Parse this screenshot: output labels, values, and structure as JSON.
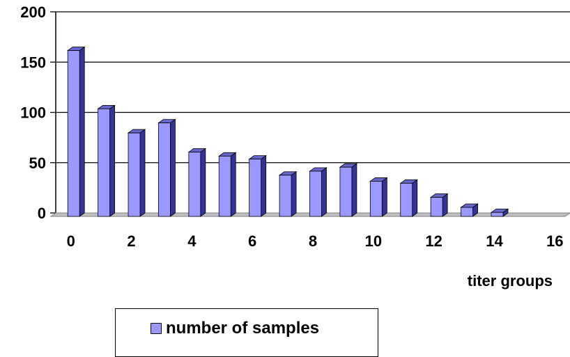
{
  "chart_data": {
    "type": "bar",
    "x": [
      0,
      1,
      2,
      3,
      4,
      5,
      6,
      7,
      8,
      9,
      10,
      11,
      12,
      13,
      14
    ],
    "series": [
      {
        "name": "number of samples",
        "values": [
          165,
          107,
          83,
          93,
          64,
          60,
          57,
          41,
          45,
          49,
          35,
          33,
          19,
          9,
          4
        ]
      }
    ],
    "xlabel": "titer groups",
    "ylabel": "",
    "xlim": [
      0,
      16
    ],
    "ylim": [
      0,
      200
    ],
    "x_ticks": [
      0,
      2,
      4,
      6,
      8,
      10,
      12,
      14,
      16
    ],
    "y_ticks": [
      0,
      50,
      100,
      150,
      200
    ],
    "grid": true,
    "style": "3d-column",
    "bar_color": "#9999ff",
    "bar_side_color": "#333399",
    "bar_top_color": "#6666cc",
    "legend_position": "bottom"
  }
}
